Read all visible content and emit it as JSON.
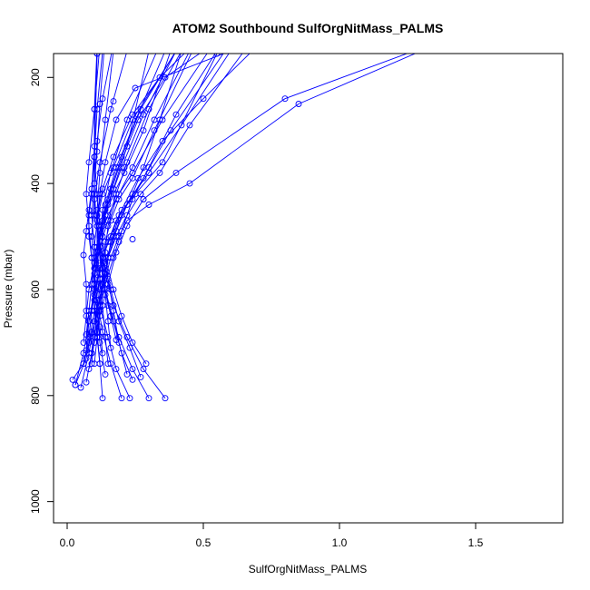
{
  "chart_data": {
    "type": "line",
    "title": "ATOM2 Southbound SulfOrgNitMass_PALMS",
    "xlabel": "SulfOrgNitMass_PALMS",
    "ylabel": "Pressure (mbar)",
    "xlim": [
      -0.05,
      1.82
    ],
    "ylim": [
      1040,
      155
    ],
    "y_reversed": true,
    "x_ticks": [
      0.0,
      0.5,
      1.0,
      1.5
    ],
    "x_tick_labels": [
      "0.0",
      "0.5",
      "1.0",
      "1.5"
    ],
    "y_ticks": [
      200,
      400,
      600,
      800,
      1000
    ],
    "y_tick_labels": [
      "200",
      "400",
      "600",
      "800",
      "1000"
    ],
    "grid": false,
    "series_color": "#0000ff",
    "profiles": [
      {
        "x": [
          0.02,
          0.06,
          0.08,
          0.1,
          0.12,
          0.1,
          0.09,
          0.1,
          0.11,
          0.13,
          0.18
        ],
        "y": [
          770,
          740,
          700,
          640,
          580,
          520,
          460,
          400,
          320,
          240,
          110
        ]
      },
      {
        "x": [
          0.03,
          0.07,
          0.09,
          0.12,
          0.14,
          0.16,
          0.2,
          0.26,
          0.35,
          0.5,
          0.7
        ],
        "y": [
          780,
          730,
          680,
          630,
          570,
          510,
          450,
          390,
          320,
          240,
          140
        ]
      },
      {
        "x": [
          0.03,
          0.06,
          0.08,
          0.1,
          0.09,
          0.08,
          0.07,
          0.08,
          0.1,
          0.12
        ],
        "y": [
          780,
          720,
          660,
          600,
          540,
          480,
          420,
          360,
          260,
          140
        ]
      },
      {
        "x": [
          0.05,
          0.08,
          0.1,
          0.13,
          0.16,
          0.19,
          0.22,
          0.3,
          0.45,
          0.85,
          1.3
        ],
        "y": [
          785,
          720,
          660,
          600,
          540,
          500,
          470,
          440,
          400,
          250,
          150
        ]
      },
      {
        "x": [
          0.07,
          0.09,
          0.12,
          0.15,
          0.18,
          0.22,
          0.28,
          0.4,
          0.8,
          1.3
        ],
        "y": [
          775,
          720,
          650,
          590,
          530,
          480,
          430,
          380,
          240,
          145
        ]
      },
      {
        "x": [
          0.06,
          0.08,
          0.09,
          0.1,
          0.12,
          0.15,
          0.18,
          0.22,
          0.3,
          0.42
        ],
        "y": [
          740,
          690,
          640,
          580,
          520,
          470,
          420,
          360,
          260,
          150
        ]
      },
      {
        "x": [
          0.08,
          0.1,
          0.12,
          0.14,
          0.17,
          0.2,
          0.24,
          0.3,
          0.4,
          0.55
        ],
        "y": [
          750,
          700,
          640,
          590,
          540,
          490,
          430,
          370,
          270,
          150
        ]
      },
      {
        "x": [
          0.1,
          0.11,
          0.12,
          0.13,
          0.12,
          0.1,
          0.1,
          0.11,
          0.12,
          0.14
        ],
        "y": [
          740,
          690,
          640,
          580,
          520,
          460,
          400,
          340,
          250,
          120
        ]
      },
      {
        "x": [
          0.13,
          0.12,
          0.11,
          0.1,
          0.1,
          0.12,
          0.15,
          0.2,
          0.28,
          0.4
        ],
        "y": [
          805,
          740,
          680,
          620,
          560,
          500,
          440,
          370,
          270,
          150
        ]
      },
      {
        "x": [
          0.2,
          0.16,
          0.13,
          0.11,
          0.1,
          0.09,
          0.1,
          0.12,
          0.16,
          0.22
        ],
        "y": [
          805,
          740,
          680,
          620,
          560,
          500,
          430,
          360,
          260,
          150
        ]
      },
      {
        "x": [
          0.23,
          0.18,
          0.15,
          0.12,
          0.11,
          0.12,
          0.14,
          0.18,
          0.26,
          0.36
        ],
        "y": [
          805,
          750,
          690,
          630,
          560,
          500,
          440,
          370,
          270,
          150
        ]
      },
      {
        "x": [
          0.3,
          0.24,
          0.19,
          0.15,
          0.13,
          0.12,
          0.13,
          0.16,
          0.22,
          0.33
        ],
        "y": [
          805,
          750,
          690,
          630,
          570,
          510,
          450,
          380,
          280,
          150
        ]
      },
      {
        "x": [
          0.36,
          0.28,
          0.22,
          0.17,
          0.14,
          0.12,
          0.11,
          0.12,
          0.14,
          0.17
        ],
        "y": [
          805,
          750,
          690,
          630,
          570,
          510,
          450,
          380,
          280,
          150
        ]
      },
      {
        "x": [
          0.29,
          0.24,
          0.2,
          0.17,
          0.14,
          0.12,
          0.11,
          0.1,
          0.11,
          0.13
        ],
        "y": [
          740,
          700,
          650,
          600,
          540,
          480,
          420,
          350,
          260,
          150
        ]
      },
      {
        "x": [
          0.27,
          0.23,
          0.19,
          0.16,
          0.13,
          0.11,
          0.1,
          0.1,
          0.1,
          0.11
        ],
        "y": [
          765,
          710,
          660,
          600,
          540,
          480,
          420,
          350,
          260,
          140
        ]
      },
      {
        "x": [
          0.24,
          0.2,
          0.17,
          0.14,
          0.12,
          0.11,
          0.12,
          0.14,
          0.18,
          0.25,
          0.6
        ],
        "y": [
          770,
          720,
          660,
          600,
          540,
          480,
          420,
          360,
          280,
          220,
          150
        ]
      },
      {
        "x": [
          0.22,
          0.19,
          0.17,
          0.15,
          0.14,
          0.15,
          0.18,
          0.24,
          0.32,
          0.45
        ],
        "y": [
          760,
          700,
          640,
          580,
          530,
          480,
          430,
          370,
          280,
          150
        ]
      },
      {
        "x": [
          0.14,
          0.12,
          0.11,
          0.1,
          0.11,
          0.13,
          0.16,
          0.2,
          0.27,
          0.4
        ],
        "y": [
          760,
          700,
          640,
          590,
          530,
          470,
          410,
          350,
          260,
          150
        ]
      },
      {
        "x": [
          0.12,
          0.11,
          0.1,
          0.1,
          0.11,
          0.13,
          0.15,
          0.19,
          0.26,
          0.36,
          0.5
        ],
        "y": [
          740,
          690,
          640,
          590,
          530,
          480,
          430,
          370,
          280,
          200,
          150
        ]
      },
      {
        "x": [
          0.15,
          0.14,
          0.13,
          0.12,
          0.11,
          0.11,
          0.13,
          0.17,
          0.24,
          0.34,
          0.44
        ],
        "y": [
          740,
          690,
          630,
          580,
          520,
          460,
          410,
          350,
          270,
          200,
          150
        ]
      },
      {
        "x": [
          0.09,
          0.1,
          0.12,
          0.14,
          0.17,
          0.2,
          0.24,
          0.28,
          0.34,
          0.42
        ],
        "y": [
          720,
          660,
          600,
          550,
          500,
          460,
          420,
          370,
          280,
          150
        ]
      },
      {
        "x": [
          0.07,
          0.08,
          0.1,
          0.12,
          0.15,
          0.18,
          0.23,
          0.3,
          0.42,
          0.6
        ],
        "y": [
          715,
          660,
          610,
          560,
          510,
          470,
          430,
          380,
          290,
          150
        ]
      },
      {
        "x": [
          0.08,
          0.09,
          0.11,
          0.13,
          0.16,
          0.19,
          0.25,
          0.35,
          0.55
        ],
        "y": [
          690,
          640,
          590,
          540,
          500,
          460,
          420,
          360,
          155
        ]
      },
      {
        "x": [
          0.07,
          0.08,
          0.09,
          0.1,
          0.12,
          0.14,
          0.17,
          0.22,
          0.3
        ],
        "y": [
          685,
          640,
          590,
          540,
          490,
          450,
          410,
          330,
          150
        ]
      },
      {
        "x": [
          0.06,
          0.07,
          0.08,
          0.1,
          0.12,
          0.15,
          0.19,
          0.24,
          0.35,
          0.52
        ],
        "y": [
          700,
          650,
          600,
          550,
          500,
          460,
          420,
          380,
          280,
          150
        ]
      },
      {
        "x": [
          0.1,
          0.11,
          0.13,
          0.15,
          0.18,
          0.22,
          0.27,
          0.34,
          0.45,
          0.65
        ],
        "y": [
          690,
          640,
          590,
          540,
          500,
          460,
          420,
          380,
          290,
          150
        ]
      },
      {
        "x": [
          0.16,
          0.15,
          0.14,
          0.13,
          0.14,
          0.16,
          0.19,
          0.24,
          0.32,
          0.46
        ],
        "y": [
          710,
          660,
          610,
          560,
          510,
          470,
          430,
          390,
          300,
          150
        ]
      },
      {
        "x": [
          0.18,
          0.16,
          0.14,
          0.13,
          0.13,
          0.14,
          0.17,
          0.21,
          0.28,
          0.38
        ],
        "y": [
          695,
          650,
          600,
          550,
          500,
          460,
          420,
          380,
          300,
          150
        ]
      },
      {
        "x": [
          0.12,
          0.11,
          0.1,
          0.09,
          0.08,
          0.08,
          0.09,
          0.1,
          0.11
        ],
        "y": [
          690,
          640,
          590,
          540,
          500,
          460,
          420,
          350,
          155
        ]
      },
      {
        "x": [
          0.08,
          0.07,
          0.07,
          0.06,
          0.07,
          0.08,
          0.09,
          0.1,
          0.11
        ],
        "y": [
          690,
          640,
          590,
          535,
          490,
          450,
          410,
          330,
          155
        ]
      },
      {
        "x": [
          0.13,
          0.12,
          0.11,
          0.1,
          0.1,
          0.11,
          0.13,
          0.17,
          0.24,
          0.4
        ],
        "y": [
          720,
          670,
          620,
          570,
          520,
          470,
          420,
          370,
          280,
          150
        ]
      },
      {
        "x": [
          0.09,
          0.1,
          0.11,
          0.13,
          0.15,
          0.18,
          0.22,
          0.28,
          0.38,
          0.58
        ],
        "y": [
          740,
          690,
          640,
          590,
          540,
          490,
          440,
          390,
          300,
          150
        ]
      }
    ],
    "isolated_points": {
      "x": [
        0.17,
        0.19,
        0.21,
        0.24,
        0.27,
        0.3,
        0.28
      ],
      "y": [
        245,
        510,
        370,
        505,
        420,
        380,
        430
      ]
    }
  }
}
